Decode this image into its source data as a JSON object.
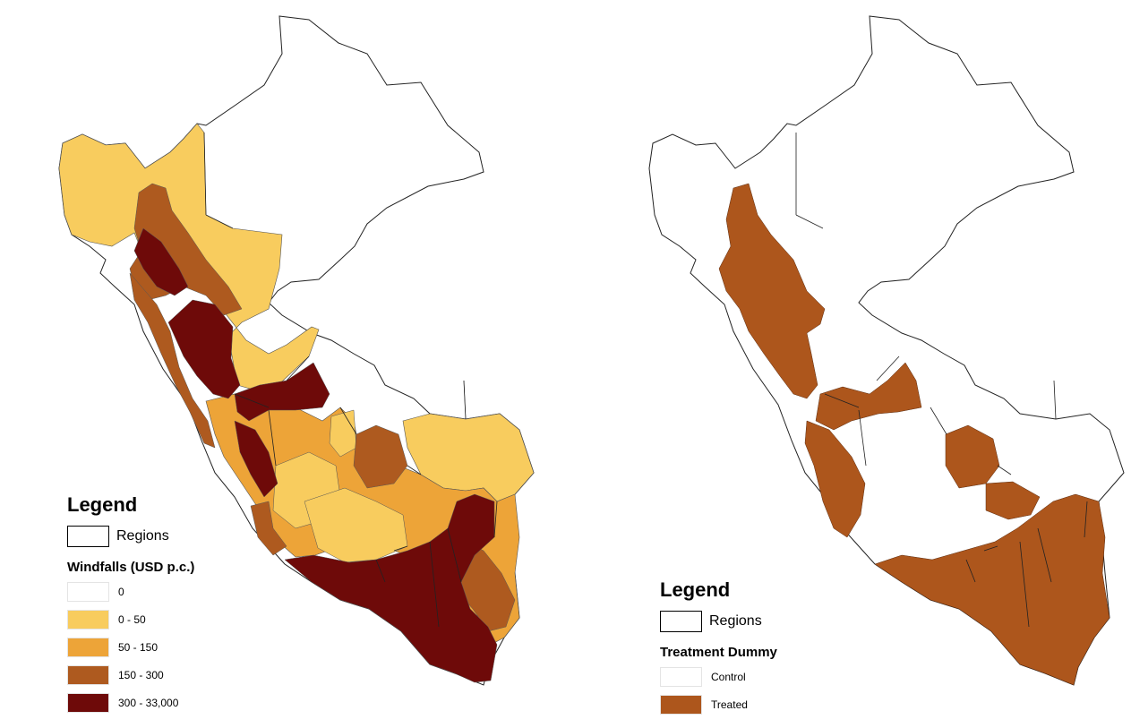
{
  "left_map": {
    "legend": {
      "title": "Legend",
      "regions_label": "Regions",
      "subtitle": "Windfalls (USD p.c.)",
      "classes": [
        {
          "label": "0",
          "color": "#ffffff"
        },
        {
          "label": "0 - 50",
          "color": "#f8cc5e"
        },
        {
          "label": "50 - 150",
          "color": "#eda438"
        },
        {
          "label": "150 - 300",
          "color": "#ae5a1f"
        },
        {
          "label": "300 - 33,000",
          "color": "#6e0a09"
        }
      ]
    }
  },
  "right_map": {
    "legend": {
      "title": "Legend",
      "regions_label": "Regions",
      "subtitle": "Treatment Dummy",
      "classes": [
        {
          "label": "Control",
          "color": "#ffffff"
        },
        {
          "label": "Treated",
          "color": "#ad561c"
        }
      ]
    }
  }
}
